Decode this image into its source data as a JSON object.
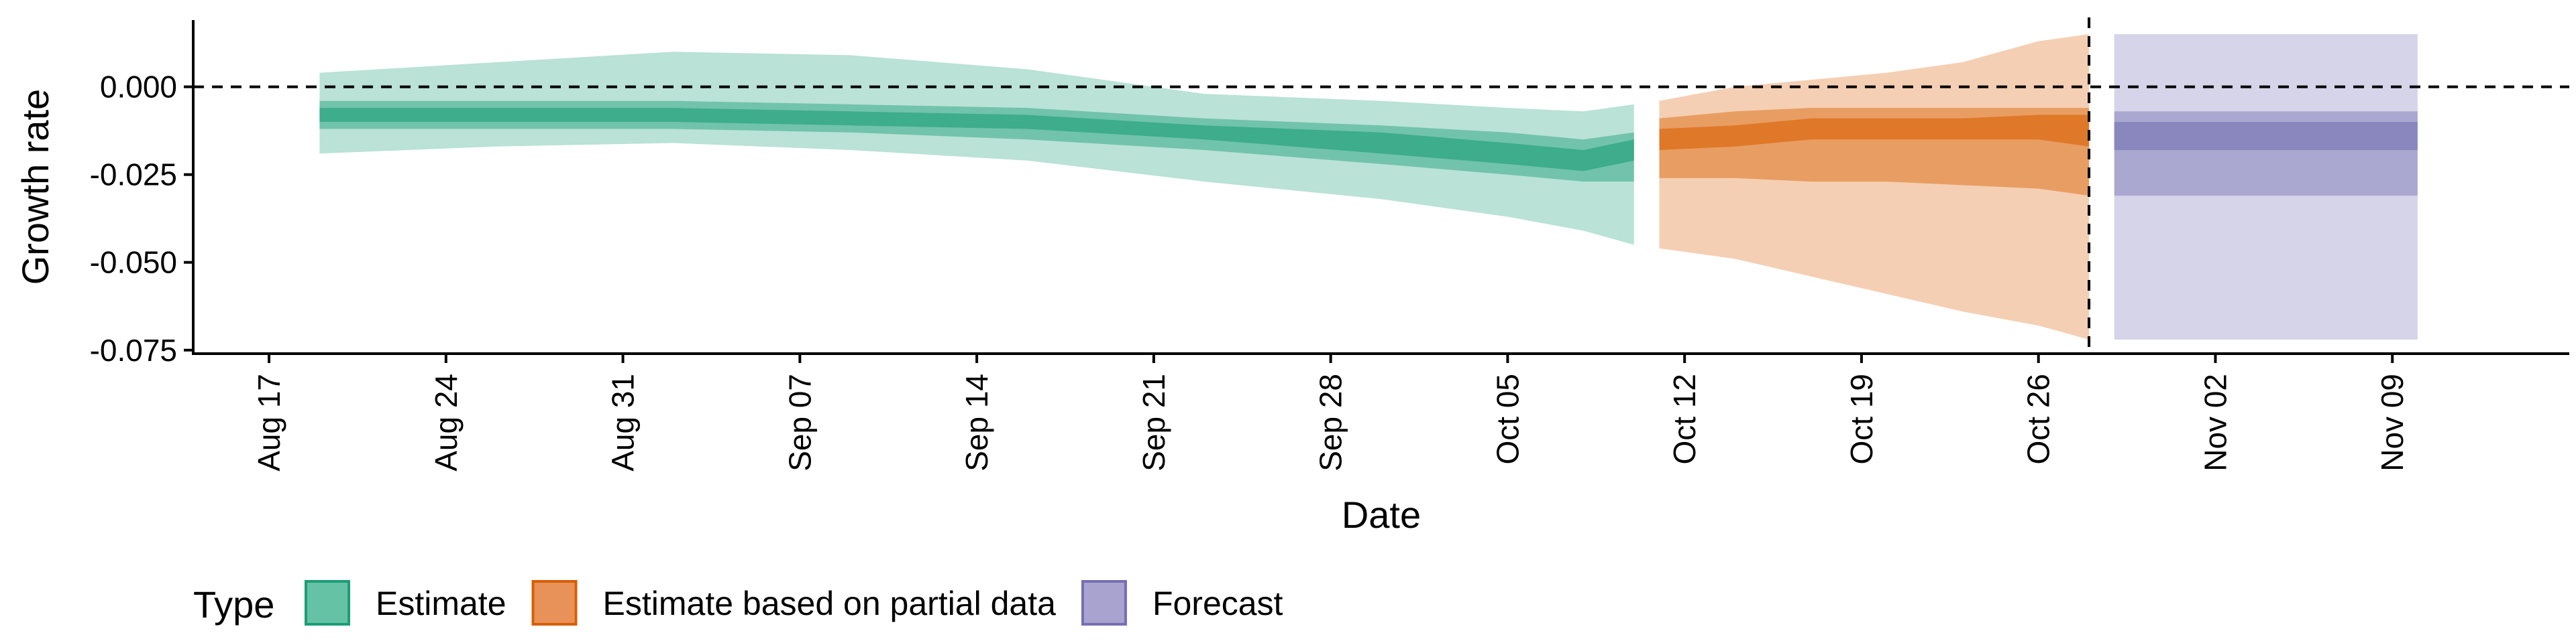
{
  "chart_data": {
    "type": "area",
    "xlabel": "Date",
    "ylabel": "Growth rate",
    "x_range": [
      "2022-08-14",
      "2022-11-16"
    ],
    "ylim": [
      -0.076,
      0.019
    ],
    "y_ticks": [
      0.0,
      -0.025,
      -0.05,
      -0.075
    ],
    "y_tick_labels": [
      "0.000",
      "-0.025",
      "-0.050",
      "-0.075"
    ],
    "x_ticks": [
      "2022-08-17",
      "2022-08-24",
      "2022-08-31",
      "2022-09-07",
      "2022-09-14",
      "2022-09-21",
      "2022-09-28",
      "2022-10-05",
      "2022-10-12",
      "2022-10-19",
      "2022-10-26",
      "2022-11-02",
      "2022-11-09"
    ],
    "x_tick_labels": [
      "Aug 17",
      "Aug 24",
      "Aug 31",
      "Sep 07",
      "Sep 14",
      "Sep 21",
      "Sep 28",
      "Oct 05",
      "Oct 12",
      "Oct 19",
      "Oct 26",
      "Nov 02",
      "Nov 09"
    ],
    "reference_lines": [
      {
        "axis": "y",
        "value": 0.0,
        "style": "dashed"
      },
      {
        "axis": "x",
        "value": "2022-10-28",
        "style": "dashed"
      }
    ],
    "legend": {
      "title": "Type",
      "position": "bottom-left",
      "entries": [
        {
          "label": "Estimate",
          "fill": "#66c2a5",
          "stroke": "#1b9e77"
        },
        {
          "label": "Estimate based on partial data",
          "fill": "#e8925a",
          "stroke": "#d95f02"
        },
        {
          "label": "Forecast",
          "fill": "#a8a4cf",
          "stroke": "#7570b3"
        }
      ]
    },
    "series": [
      {
        "name": "Estimate",
        "color": "#1b9e77",
        "x": [
          "2022-08-19",
          "2022-08-26",
          "2022-09-02",
          "2022-09-09",
          "2022-09-16",
          "2022-09-23",
          "2022-09-30",
          "2022-10-05",
          "2022-10-08",
          "2022-10-10"
        ],
        "median": [
          -0.008,
          -0.008,
          -0.008,
          -0.009,
          -0.01,
          -0.013,
          -0.016,
          -0.019,
          -0.021,
          -0.018
        ],
        "ci20": [
          [
            -0.01,
            -0.006
          ],
          [
            -0.01,
            -0.006
          ],
          [
            -0.01,
            -0.006
          ],
          [
            -0.011,
            -0.007
          ],
          [
            -0.012,
            -0.008
          ],
          [
            -0.015,
            -0.011
          ],
          [
            -0.019,
            -0.013
          ],
          [
            -0.022,
            -0.016
          ],
          [
            -0.024,
            -0.018
          ],
          [
            -0.021,
            -0.015
          ]
        ],
        "ci50": [
          [
            -0.012,
            -0.004
          ],
          [
            -0.012,
            -0.004
          ],
          [
            -0.012,
            -0.004
          ],
          [
            -0.013,
            -0.005
          ],
          [
            -0.015,
            -0.006
          ],
          [
            -0.018,
            -0.009
          ],
          [
            -0.022,
            -0.011
          ],
          [
            -0.025,
            -0.013
          ],
          [
            -0.027,
            -0.015
          ],
          [
            -0.027,
            -0.013
          ]
        ],
        "ci90": [
          [
            -0.019,
            0.004
          ],
          [
            -0.017,
            0.007
          ],
          [
            -0.016,
            0.01
          ],
          [
            -0.018,
            0.009
          ],
          [
            -0.021,
            0.005
          ],
          [
            -0.027,
            -0.002
          ],
          [
            -0.032,
            -0.004
          ],
          [
            -0.037,
            -0.006
          ],
          [
            -0.041,
            -0.007
          ],
          [
            -0.045,
            -0.005
          ]
        ]
      },
      {
        "name": "Estimate based on partial data",
        "color": "#d95f02",
        "x": [
          "2022-10-11",
          "2022-10-14",
          "2022-10-17",
          "2022-10-20",
          "2022-10-23",
          "2022-10-26",
          "2022-10-28"
        ],
        "median": [
          -0.015,
          -0.014,
          -0.012,
          -0.012,
          -0.012,
          -0.012,
          -0.013
        ],
        "ci20": [
          [
            -0.018,
            -0.012
          ],
          [
            -0.017,
            -0.011
          ],
          [
            -0.015,
            -0.009
          ],
          [
            -0.015,
            -0.009
          ],
          [
            -0.015,
            -0.009
          ],
          [
            -0.015,
            -0.008
          ],
          [
            -0.017,
            -0.008
          ]
        ],
        "ci50": [
          [
            -0.026,
            -0.009
          ],
          [
            -0.026,
            -0.007
          ],
          [
            -0.027,
            -0.006
          ],
          [
            -0.027,
            -0.006
          ],
          [
            -0.028,
            -0.006
          ],
          [
            -0.029,
            -0.006
          ],
          [
            -0.031,
            -0.006
          ]
        ],
        "ci90": [
          [
            -0.046,
            -0.004
          ],
          [
            -0.049,
            0.0
          ],
          [
            -0.054,
            0.002
          ],
          [
            -0.059,
            0.004
          ],
          [
            -0.064,
            0.007
          ],
          [
            -0.068,
            0.013
          ],
          [
            -0.072,
            0.015
          ]
        ]
      },
      {
        "name": "Forecast",
        "color": "#7570b3",
        "x": [
          "2022-10-29",
          "2022-11-10"
        ],
        "median": [
          -0.014,
          -0.014
        ],
        "ci20": [
          [
            -0.018,
            -0.01
          ],
          [
            -0.018,
            -0.01
          ]
        ],
        "ci50": [
          [
            -0.031,
            -0.007
          ],
          [
            -0.031,
            -0.007
          ]
        ],
        "ci90": [
          [
            -0.072,
            0.015
          ],
          [
            -0.072,
            0.015
          ]
        ]
      }
    ]
  }
}
